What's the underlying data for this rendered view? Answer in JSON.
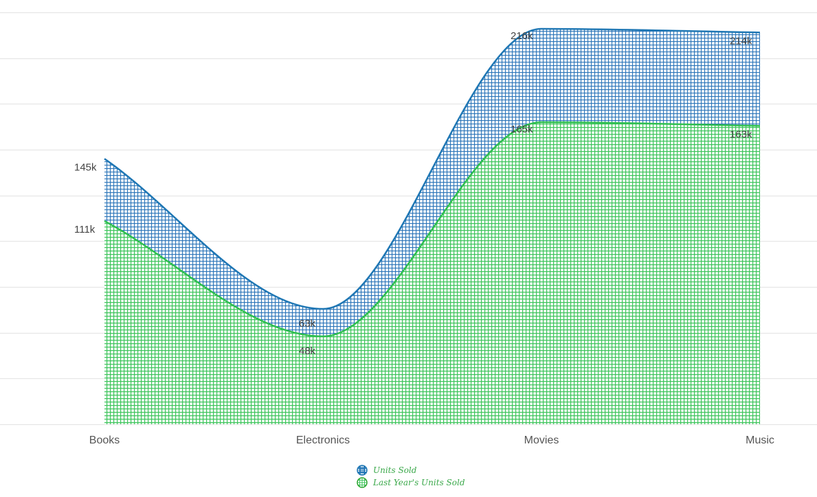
{
  "chart_data": {
    "type": "area",
    "title": "",
    "xlabel": "",
    "ylabel": "",
    "categories": [
      "Books",
      "Electronics",
      "Movies",
      "Music"
    ],
    "series": [
      {
        "name": "Units Sold",
        "values": [
          145,
          63,
          216,
          214
        ],
        "labels": [
          "145k",
          "63k",
          "216k",
          "214k"
        ],
        "color": "#1f77b4"
      },
      {
        "name": "Last Year's Units Sold",
        "values": [
          111,
          48,
          165,
          163
        ],
        "labels": [
          "111k",
          "48k",
          "165k",
          "163k"
        ],
        "color": "#2ca02c"
      }
    ],
    "units": "k",
    "ylim": [
      0,
      225
    ],
    "y_grid_step": 25,
    "grid": true,
    "legend_position": "bottom-center",
    "fill": "crosshatch-pattern",
    "curve": "smooth"
  },
  "legend": {
    "items": [
      {
        "label": "Units Sold",
        "color": "#1f77b4",
        "icon": "crosshatch-circle-icon"
      },
      {
        "label": "Last Year's Units Sold",
        "color": "#2ca02c",
        "icon": "crosshatch-circle-icon"
      }
    ]
  }
}
